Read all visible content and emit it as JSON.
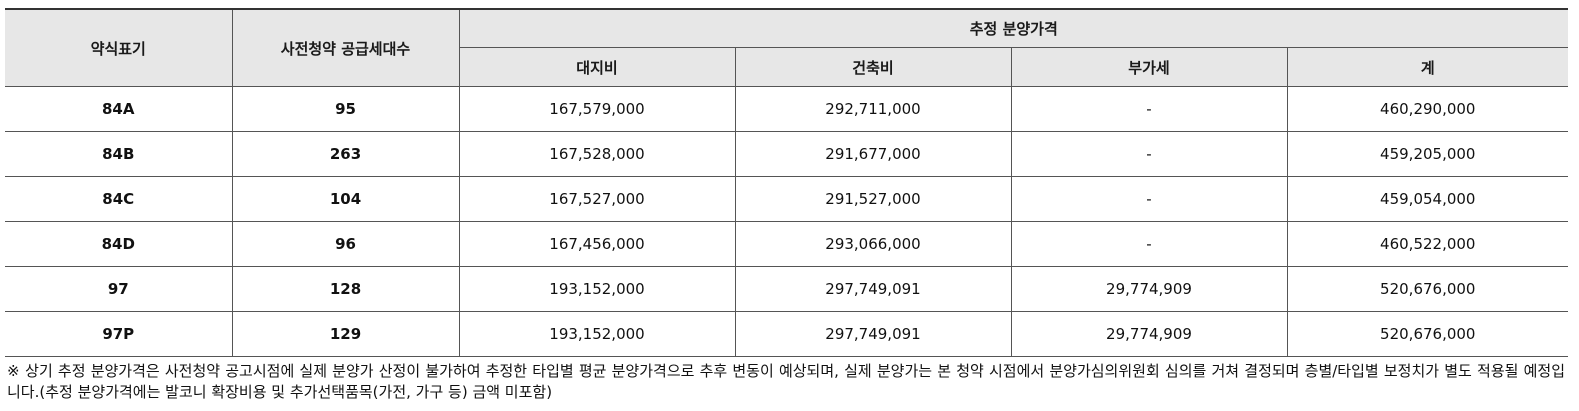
{
  "table": {
    "header": {
      "type_label": "약식표기",
      "units_label": "사전청약 공급세대수",
      "price_group_label": "추정 분양가격",
      "land_label": "대지비",
      "build_label": "건축비",
      "vat_label": "부가세",
      "total_label": "계"
    },
    "rows": [
      {
        "type": "84A",
        "units": "95",
        "land": "167,579,000",
        "build": "292,711,000",
        "vat": "-",
        "total": "460,290,000"
      },
      {
        "type": "84B",
        "units": "263",
        "land": "167,528,000",
        "build": "291,677,000",
        "vat": "-",
        "total": "459,205,000"
      },
      {
        "type": "84C",
        "units": "104",
        "land": "167,527,000",
        "build": "291,527,000",
        "vat": "-",
        "total": "459,054,000"
      },
      {
        "type": "84D",
        "units": "96",
        "land": "167,456,000",
        "build": "293,066,000",
        "vat": "-",
        "total": "460,522,000"
      },
      {
        "type": "97",
        "units": "128",
        "land": "193,152,000",
        "build": "297,749,091",
        "vat": "29,774,909",
        "total": "520,676,000"
      },
      {
        "type": "97P",
        "units": "129",
        "land": "193,152,000",
        "build": "297,749,091",
        "vat": "29,774,909",
        "total": "520,676,000"
      }
    ]
  },
  "note": "※ 상기 추정 분양가격은 사전청약 공고시점에 실제 분양가 산정이 불가하여 추정한 타입별 평균 분양가격으로 추후 변동이 예상되며, 실제 분양가는 본 청약 시점에서 분양가심의위원회 심의를 거쳐 결정되며 층별/타입별 보정치가 별도 적용될 예정입니다.(추정 분양가격에는 발코니 확장비용 및 추가선택품목(가전, 가구 등) 금액 미포함)"
}
